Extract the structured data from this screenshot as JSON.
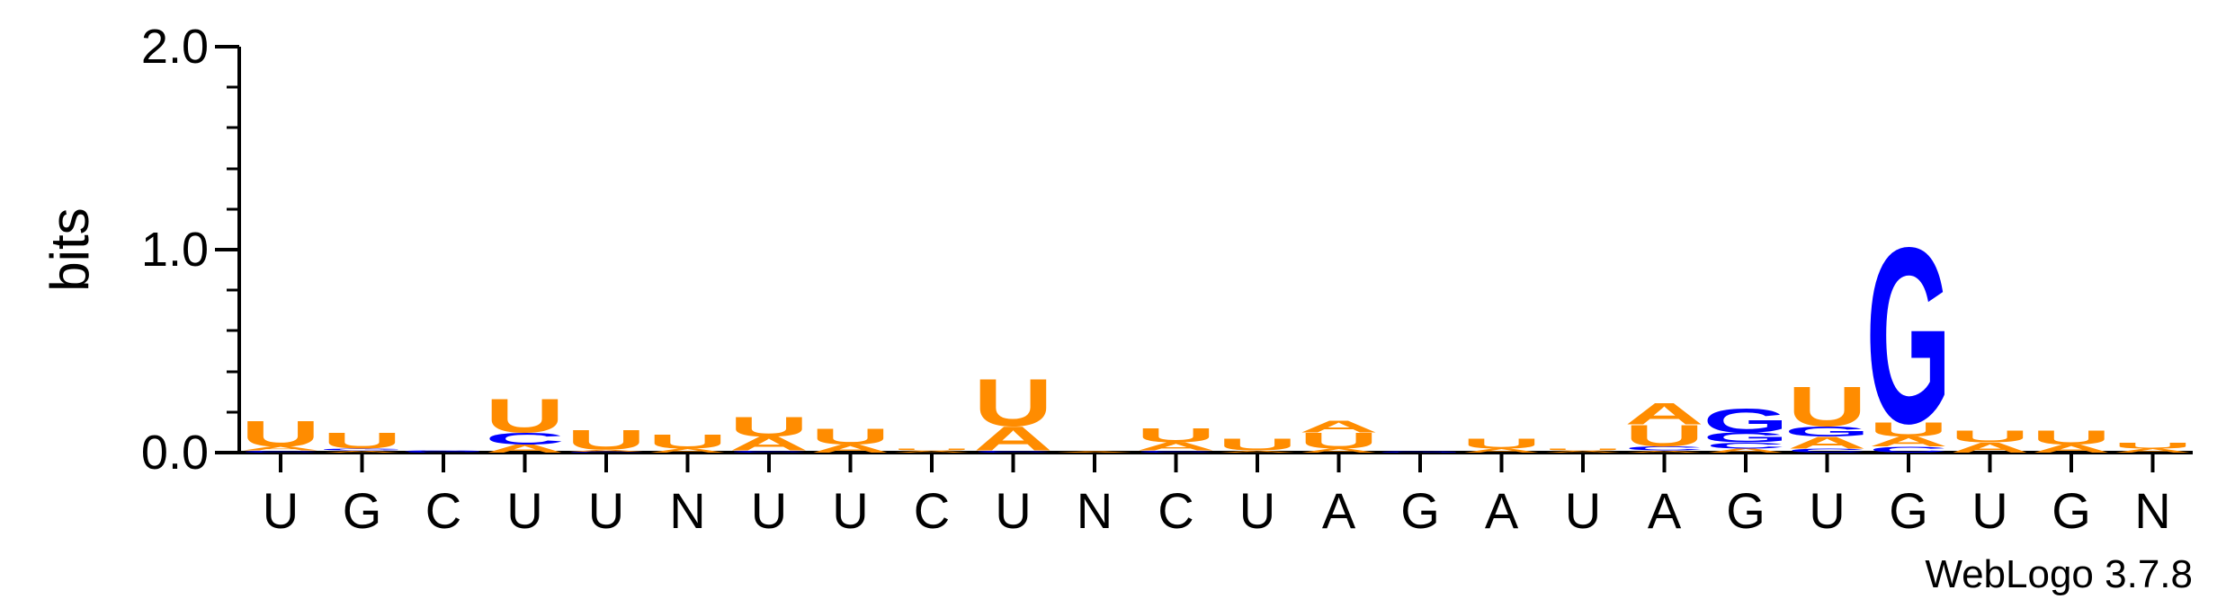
{
  "chart_data": {
    "type": "sequence-logo",
    "ylabel": "bits",
    "ylim": [
      0,
      2.0
    ],
    "yticks": [
      "0.0",
      "1.0",
      "2.0"
    ],
    "consensus": [
      "U",
      "G",
      "C",
      "U",
      "U",
      "N",
      "U",
      "U",
      "C",
      "U",
      "N",
      "C",
      "U",
      "A",
      "G",
      "A",
      "U",
      "A",
      "G",
      "U",
      "G",
      "U",
      "G",
      "N"
    ],
    "colors": {
      "A": "#ff8c00",
      "U": "#ff8c00",
      "G": "#0000ff",
      "C": "#0000ff"
    },
    "positions": [
      [
        [
          "C",
          0.01
        ],
        [
          "A",
          0.02
        ],
        [
          "U",
          0.13
        ]
      ],
      [
        [
          "A",
          0.01
        ],
        [
          "G",
          0.01
        ],
        [
          "U",
          0.08
        ]
      ],
      [
        [
          "C",
          0.0
        ],
        [
          "G",
          0.0
        ]
      ],
      [
        [
          "A",
          0.04
        ],
        [
          "C",
          0.06
        ],
        [
          "U",
          0.17
        ]
      ],
      [
        [
          "C",
          0.0
        ],
        [
          "A",
          0.01
        ],
        [
          "U",
          0.1
        ]
      ],
      [
        [
          "A",
          0.02
        ],
        [
          "U",
          0.07
        ]
      ],
      [
        [
          "C",
          0.01
        ],
        [
          "A",
          0.07
        ],
        [
          "U",
          0.1
        ]
      ],
      [
        [
          "A",
          0.04
        ],
        [
          "U",
          0.08
        ]
      ],
      [
        [
          "A",
          0.01
        ],
        [
          "U",
          0.01
        ]
      ],
      [
        [
          "C",
          0.01
        ],
        [
          "A",
          0.12
        ],
        [
          "U",
          0.24
        ]
      ],
      [
        [
          "A",
          0.0
        ]
      ],
      [
        [
          "C",
          0.01
        ],
        [
          "A",
          0.04
        ],
        [
          "U",
          0.07
        ]
      ],
      [
        [
          "A",
          0.01
        ],
        [
          "U",
          0.06
        ]
      ],
      [
        [
          "A",
          0.02
        ],
        [
          "U",
          0.08
        ],
        [
          "A",
          0.06
        ]
      ],
      [
        [
          "G",
          0.0
        ]
      ],
      [
        [
          "A",
          0.02
        ],
        [
          "U",
          0.05
        ]
      ],
      [
        [
          "A",
          0.01
        ],
        [
          "U",
          0.01
        ]
      ],
      [
        [
          "A",
          0.01
        ],
        [
          "C",
          0.02
        ],
        [
          "U",
          0.11
        ],
        [
          "A",
          0.11
        ]
      ],
      [
        [
          "A",
          0.02
        ],
        [
          "C",
          0.03
        ],
        [
          "G",
          0.05
        ],
        [
          "G",
          0.12
        ]
      ],
      [
        [
          "C",
          0.02
        ],
        [
          "A",
          0.06
        ],
        [
          "G",
          0.05
        ],
        [
          "U",
          0.2
        ]
      ],
      [
        [
          "C",
          0.03
        ],
        [
          "A",
          0.05
        ],
        [
          "U",
          0.07
        ],
        [
          "G",
          0.89
        ]
      ],
      [
        [
          "A",
          0.05
        ],
        [
          "U",
          0.06
        ]
      ],
      [
        [
          "A",
          0.04
        ],
        [
          "U",
          0.07
        ]
      ],
      [
        [
          "A",
          0.02
        ],
        [
          "U",
          0.03
        ]
      ]
    ]
  },
  "footer": {
    "credit": "WebLogo 3.7.8"
  }
}
